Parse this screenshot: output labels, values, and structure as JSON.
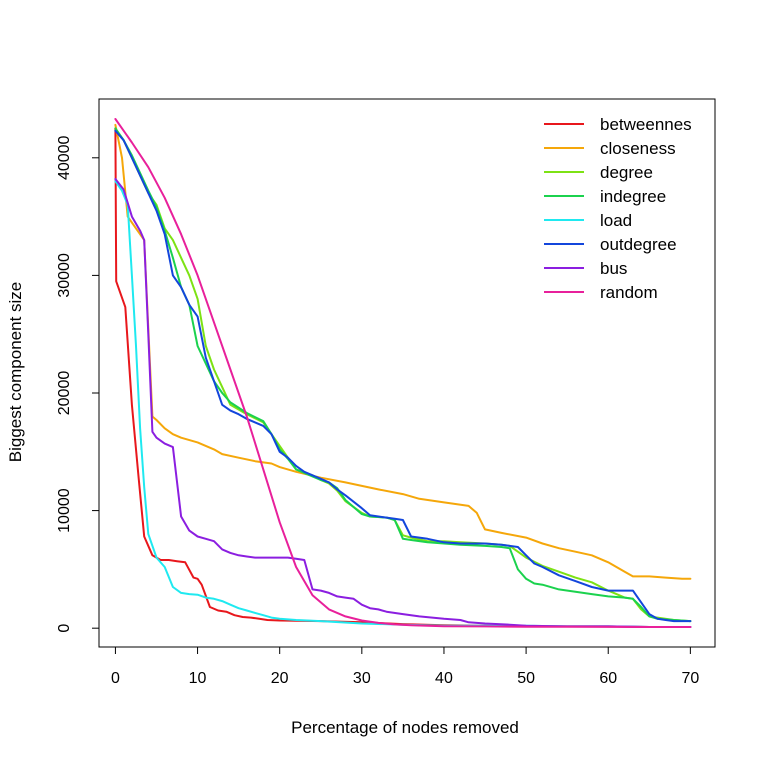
{
  "chart_data": {
    "type": "line",
    "title": "",
    "xlabel": "Percentage of nodes removed",
    "ylabel": "Biggest component size",
    "xlim": [
      -2,
      73
    ],
    "ylim": [
      -1600,
      45000
    ],
    "x_ticks": [
      0,
      10,
      20,
      30,
      40,
      50,
      60,
      70
    ],
    "x_tick_labels": [
      "0",
      "10",
      "20",
      "30",
      "40",
      "50",
      "60",
      "70"
    ],
    "y_ticks": [
      0,
      10000,
      20000,
      30000,
      40000
    ],
    "y_tick_labels": [
      "0",
      "10000",
      "20000",
      "30000",
      "40000"
    ],
    "grid": false,
    "legend_position": "top-right",
    "series": [
      {
        "name": "betweennes",
        "color": "#e8171c",
        "x": [
          0,
          0.1,
          1.2,
          2,
          2.8,
          3.5,
          4.5,
          5.5,
          6.5,
          7.5,
          8.5,
          9.5,
          10,
          10.5,
          11.5,
          12.5,
          13.5,
          14.5,
          15.5,
          16.5,
          17.5,
          18.5,
          20,
          25,
          30,
          35,
          40,
          45,
          50,
          55,
          60,
          65,
          70
        ],
        "y": [
          42500,
          29500,
          27300,
          19000,
          13000,
          7800,
          6200,
          5800,
          5800,
          5700,
          5600,
          4300,
          4200,
          3700,
          1800,
          1500,
          1400,
          1100,
          950,
          900,
          800,
          700,
          650,
          600,
          500,
          350,
          250,
          200,
          150,
          150,
          150,
          100,
          100
        ]
      },
      {
        "name": "closeness",
        "color": "#f5a70a",
        "x": [
          0,
          0.8,
          1.5,
          2.5,
          3.5,
          4.5,
          5,
          6,
          7,
          8,
          10,
          12,
          13,
          15,
          17,
          19,
          20,
          22,
          25,
          28,
          30,
          32,
          35,
          37,
          40,
          43,
          44,
          45,
          47,
          50,
          52,
          54,
          56,
          58,
          60,
          62,
          63,
          65,
          67,
          69,
          70
        ],
        "y": [
          42800,
          40000,
          35000,
          34000,
          33000,
          18000,
          17700,
          17000,
          16500,
          16200,
          15800,
          15200,
          14800,
          14500,
          14200,
          14000,
          13700,
          13300,
          12800,
          12400,
          12100,
          11800,
          11400,
          11000,
          10700,
          10400,
          9800,
          8400,
          8100,
          7700,
          7200,
          6800,
          6500,
          6200,
          5600,
          4800,
          4400,
          4400,
          4300,
          4200,
          4200
        ]
      },
      {
        "name": "degree",
        "color": "#7de214",
        "x": [
          0,
          1,
          2,
          3,
          4,
          5,
          6,
          7,
          8,
          9,
          10,
          11,
          12,
          13,
          14,
          16,
          18,
          19,
          20,
          21,
          22,
          24,
          25,
          26,
          27,
          28,
          30,
          31,
          33,
          34,
          35,
          36,
          38,
          40,
          42,
          45,
          47,
          48,
          49,
          50,
          52,
          54,
          56,
          58,
          60,
          62,
          63,
          64,
          65,
          66,
          68,
          70
        ],
        "y": [
          42500,
          41500,
          40000,
          38500,
          37000,
          36000,
          34000,
          33000,
          31500,
          30000,
          28000,
          24000,
          22000,
          20500,
          19000,
          18200,
          17500,
          16500,
          15500,
          14500,
          13500,
          13000,
          12600,
          12300,
          11700,
          10800,
          9800,
          9500,
          9400,
          9200,
          7900,
          7700,
          7400,
          7400,
          7300,
          7200,
          7100,
          7000,
          6500,
          6000,
          5300,
          4800,
          4300,
          3900,
          3200,
          2600,
          2500,
          1600,
          1000,
          900,
          700,
          600
        ]
      },
      {
        "name": "indegree",
        "color": "#1bd24e",
        "x": [
          0,
          1,
          2,
          3,
          4,
          5,
          6,
          7,
          8,
          9,
          10,
          11,
          12,
          13,
          14,
          16,
          18,
          19,
          20,
          21,
          22,
          24,
          25,
          26,
          27,
          28,
          30,
          31,
          33,
          34,
          35,
          36,
          38,
          40,
          42,
          45,
          47,
          48,
          49,
          50,
          51,
          52,
          54,
          56,
          58,
          60,
          62,
          63,
          64,
          65,
          66,
          68,
          70
        ],
        "y": [
          42500,
          41500,
          40200,
          38700,
          37200,
          35800,
          33800,
          31500,
          29000,
          27500,
          24000,
          22500,
          21000,
          20000,
          19200,
          18300,
          17600,
          16500,
          15200,
          14400,
          13500,
          12900,
          12600,
          12400,
          11900,
          10900,
          9700,
          9500,
          9400,
          9200,
          7600,
          7500,
          7300,
          7200,
          7100,
          7000,
          6900,
          6800,
          5000,
          4200,
          3800,
          3700,
          3300,
          3100,
          2900,
          2700,
          2600,
          2500,
          1800,
          1000,
          800,
          700,
          600
        ]
      },
      {
        "name": "load",
        "color": "#1fe9f0",
        "x": [
          0,
          0.8,
          1.5,
          2,
          2.5,
          3,
          3.5,
          4,
          5,
          6,
          7,
          8,
          9,
          10,
          11,
          12,
          13,
          14,
          15,
          16,
          17,
          18,
          19,
          20,
          22,
          25,
          30,
          35,
          40,
          45,
          50,
          55,
          60,
          65,
          70
        ],
        "y": [
          38000,
          37200,
          36000,
          30000,
          24000,
          17000,
          12000,
          8000,
          6000,
          5200,
          3500,
          3000,
          2900,
          2850,
          2600,
          2500,
          2300,
          2000,
          1700,
          1500,
          1300,
          1100,
          900,
          800,
          700,
          600,
          400,
          300,
          200,
          200,
          200,
          150,
          150,
          100,
          100
        ]
      },
      {
        "name": "outdegree",
        "color": "#1346dc",
        "x": [
          0,
          1,
          2,
          3,
          4,
          5,
          6,
          7,
          8,
          9,
          10,
          11,
          12,
          13,
          14,
          15,
          16,
          17,
          18,
          19,
          20,
          21,
          22,
          23,
          24,
          25,
          26,
          27,
          28,
          30,
          31,
          33,
          34,
          35,
          36,
          38,
          40,
          42,
          45,
          47,
          48,
          49,
          50,
          51,
          52,
          54,
          56,
          58,
          60,
          62,
          63,
          64,
          65,
          66,
          67,
          68,
          70
        ],
        "y": [
          42300,
          41500,
          40000,
          38500,
          37000,
          35500,
          33500,
          30000,
          29000,
          27500,
          26500,
          23000,
          21000,
          19000,
          18500,
          18200,
          17800,
          17500,
          17200,
          16500,
          15000,
          14500,
          13800,
          13300,
          13000,
          12700,
          12400,
          11800,
          11300,
          10200,
          9600,
          9400,
          9300,
          9200,
          7800,
          7600,
          7300,
          7200,
          7200,
          7100,
          7000,
          6900,
          6200,
          5500,
          5200,
          4500,
          4000,
          3500,
          3200,
          3200,
          3200,
          2200,
          1200,
          800,
          700,
          600,
          600
        ]
      },
      {
        "name": "bus",
        "color": "#8b1ee0",
        "x": [
          0,
          1,
          2,
          3,
          3.5,
          4,
          4.5,
          5,
          6,
          7,
          8,
          9,
          10,
          11,
          12,
          13,
          14,
          15,
          16,
          17,
          18,
          19,
          20,
          21,
          22,
          23,
          24,
          25,
          26,
          27,
          28,
          29,
          30,
          31,
          32,
          33,
          35,
          37,
          40,
          42,
          43,
          45,
          48,
          50,
          55,
          60,
          65,
          70
        ],
        "y": [
          38200,
          37300,
          35000,
          33800,
          33000,
          25000,
          16700,
          16200,
          15700,
          15400,
          9500,
          8300,
          7800,
          7600,
          7400,
          6700,
          6400,
          6200,
          6100,
          6000,
          6000,
          6000,
          6000,
          6000,
          5900,
          5800,
          3300,
          3200,
          3000,
          2700,
          2600,
          2500,
          2000,
          1700,
          1600,
          1400,
          1200,
          1000,
          800,
          700,
          500,
          400,
          300,
          200,
          150,
          150,
          100,
          100
        ]
      },
      {
        "name": "random",
        "color": "#e8209b",
        "x": [
          0,
          2,
          4,
          6,
          8,
          10,
          12,
          14,
          16,
          18,
          20,
          22,
          24,
          26,
          28,
          30,
          32,
          34,
          36,
          38,
          40,
          45,
          50,
          55,
          60,
          65,
          70
        ],
        "y": [
          43300,
          41300,
          39200,
          36600,
          33500,
          30000,
          26000,
          22000,
          18000,
          13500,
          9000,
          5200,
          2800,
          1600,
          1000,
          650,
          450,
          320,
          250,
          200,
          170,
          150,
          130,
          120,
          110,
          100,
          100
        ]
      }
    ]
  }
}
